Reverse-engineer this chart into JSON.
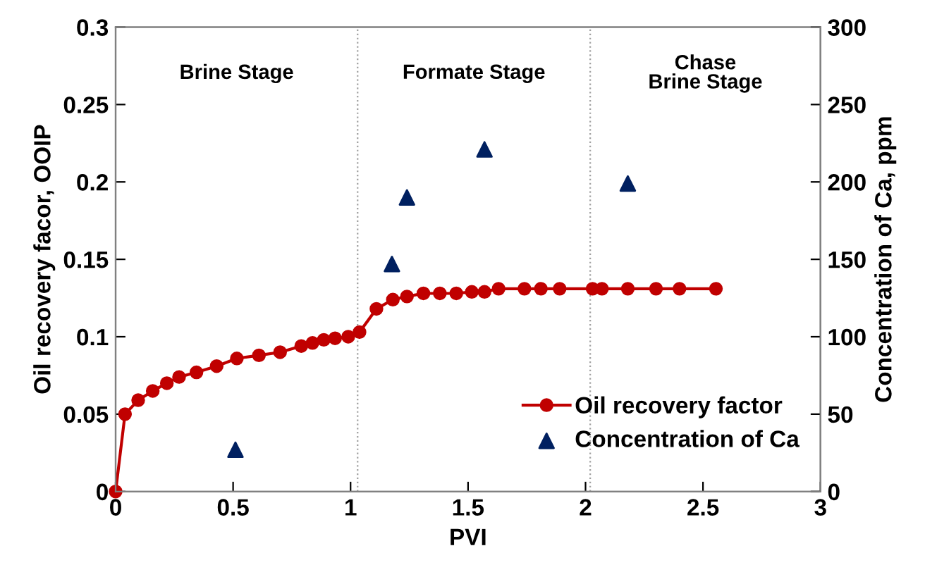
{
  "chart_data": {
    "type": "line",
    "xlabel": "PVI",
    "ylabel": "Oil recovery facor, OOIP",
    "y2label": "Concentration of Ca, ppm",
    "xlim": [
      0,
      3
    ],
    "xticks": [
      0,
      0.5,
      1,
      1.5,
      2,
      2.5,
      3
    ],
    "ylim": [
      0,
      0.3
    ],
    "yticks": [
      0,
      0.05,
      0.1,
      0.15,
      0.2,
      0.25,
      0.3
    ],
    "y2lim": [
      0,
      300
    ],
    "y2ticks": [
      0,
      50,
      100,
      150,
      200,
      250,
      300
    ],
    "grid": false,
    "legend": "bottom right",
    "series": [
      {
        "name": "Oil recovery factor",
        "color": "#c00000",
        "marker": "circle",
        "line_style": "solid",
        "x": [
          0,
          0.04,
          0.096,
          0.158,
          0.218,
          0.27,
          0.344,
          0.43,
          0.516,
          0.61,
          0.7,
          0.79,
          0.838,
          0.886,
          0.934,
          0.99,
          1.038,
          1.11,
          1.18,
          1.24,
          1.31,
          1.38,
          1.45,
          1.516,
          1.57,
          1.63,
          1.74,
          1.81,
          1.89,
          2.03,
          2.07,
          2.18,
          2.3,
          2.4,
          2.555
        ],
        "values": [
          0,
          0.05,
          0.059,
          0.065,
          0.07,
          0.074,
          0.077,
          0.081,
          0.086,
          0.088,
          0.09,
          0.094,
          0.096,
          0.098,
          0.099,
          0.1,
          0.103,
          0.118,
          0.124,
          0.126,
          0.128,
          0.128,
          0.128,
          0.129,
          0.129,
          0.131,
          0.131,
          0.131,
          0.131,
          0.131,
          0.131,
          0.131,
          0.131,
          0.131,
          0.131
        ]
      },
      {
        "name": "Concentration of Ca",
        "type": "scatter",
        "axis": "y2",
        "color": "#002060",
        "marker": "triangle",
        "x": [
          0.51,
          1.176,
          1.24,
          1.57,
          2.18
        ],
        "values": [
          27,
          147,
          190,
          221,
          199
        ]
      }
    ],
    "ref_lines": [
      {
        "axis": "x",
        "value": 1.03,
        "color": "#a0a0a0",
        "line_style": "dotted"
      },
      {
        "axis": "x",
        "value": 2.02,
        "color": "#a0a0a0",
        "line_style": "dotted"
      }
    ],
    "annotations": [
      "Brine Stage",
      "Formate Stage",
      "Chase\nBrine Stage"
    ]
  }
}
